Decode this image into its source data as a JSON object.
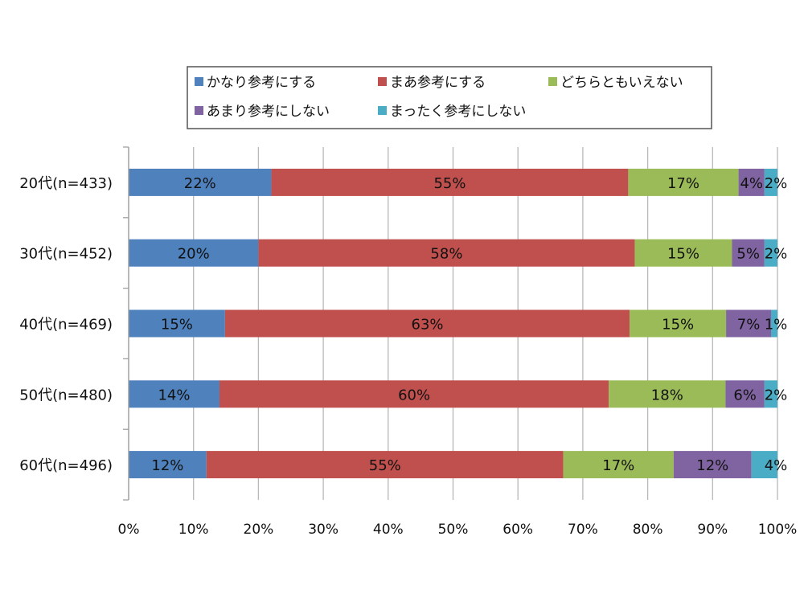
{
  "chart_data": {
    "type": "bar",
    "orientation": "horizontal",
    "stacked": "percent",
    "categories": [
      "20代(n=433)",
      "30代(n=452)",
      "40代(n=469)",
      "50代(n=480)",
      "60代(n=496)"
    ],
    "series": [
      {
        "name": "かなり参考にする",
        "color": "#4f81bd",
        "values": [
          22,
          20,
          15,
          14,
          12
        ]
      },
      {
        "name": "まあ参考にする",
        "color": "#c0504d",
        "values": [
          55,
          58,
          63,
          60,
          55
        ]
      },
      {
        "name": "どちらともいえない",
        "color": "#9bbb59",
        "values": [
          17,
          15,
          15,
          18,
          17
        ]
      },
      {
        "name": "あまり参考にしない",
        "color": "#8064a2",
        "values": [
          4,
          5,
          7,
          6,
          12
        ]
      },
      {
        "name": "まったく参考にしない",
        "color": "#4bacc6",
        "values": [
          2,
          2,
          1,
          2,
          4
        ]
      }
    ],
    "xlim": [
      0,
      100
    ],
    "x_ticks": [
      "0%",
      "10%",
      "20%",
      "30%",
      "40%",
      "50%",
      "60%",
      "70%",
      "80%",
      "90%",
      "100%"
    ],
    "data_label_suffix": "%",
    "grid": true,
    "legend_position": "top"
  }
}
